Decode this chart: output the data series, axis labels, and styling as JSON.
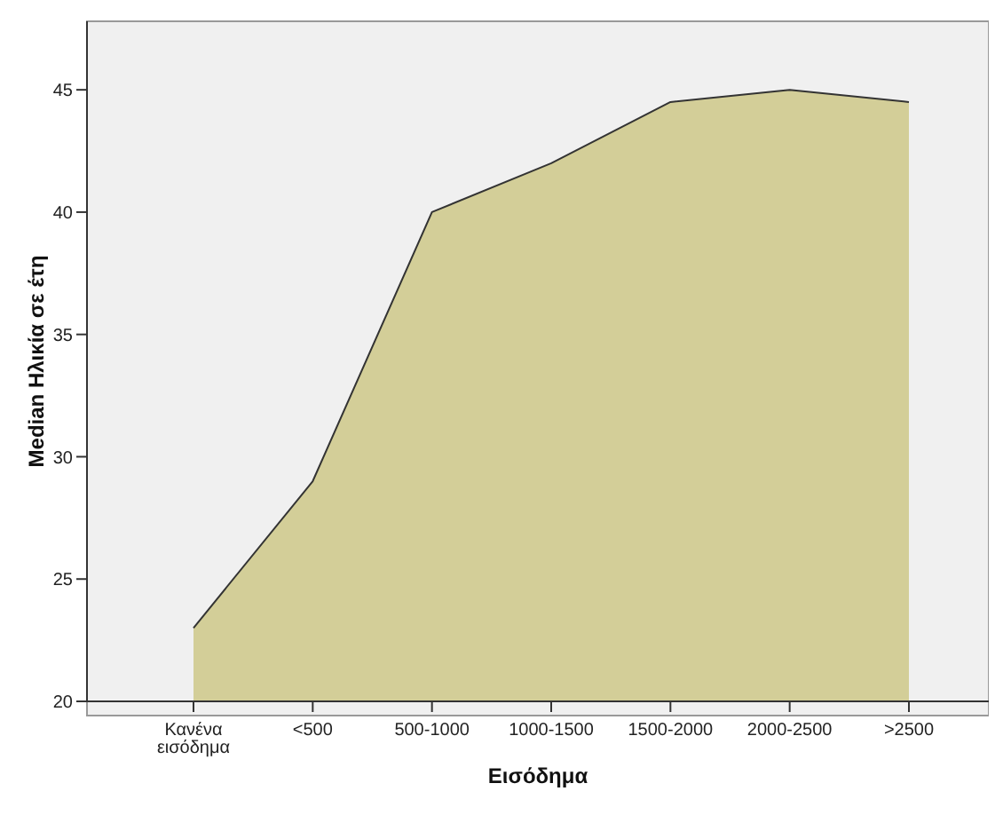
{
  "chart_data": {
    "type": "area",
    "xlabel": "Εισόδημα",
    "ylabel": "Median Ηλικία σε έτη",
    "categories": [
      "Κανένα εισόδημα",
      "<500",
      "500-1000",
      "1000-1500",
      "1500-2000",
      "2000-2500",
      ">2500"
    ],
    "series": [
      {
        "color": "#d3ce98",
        "values": [
          23,
          29,
          40,
          42,
          44.5,
          45,
          44.5
        ]
      }
    ],
    "ylim": [
      20,
      47.8
    ],
    "yticks": [
      20,
      25,
      30,
      35,
      40,
      45
    ]
  }
}
